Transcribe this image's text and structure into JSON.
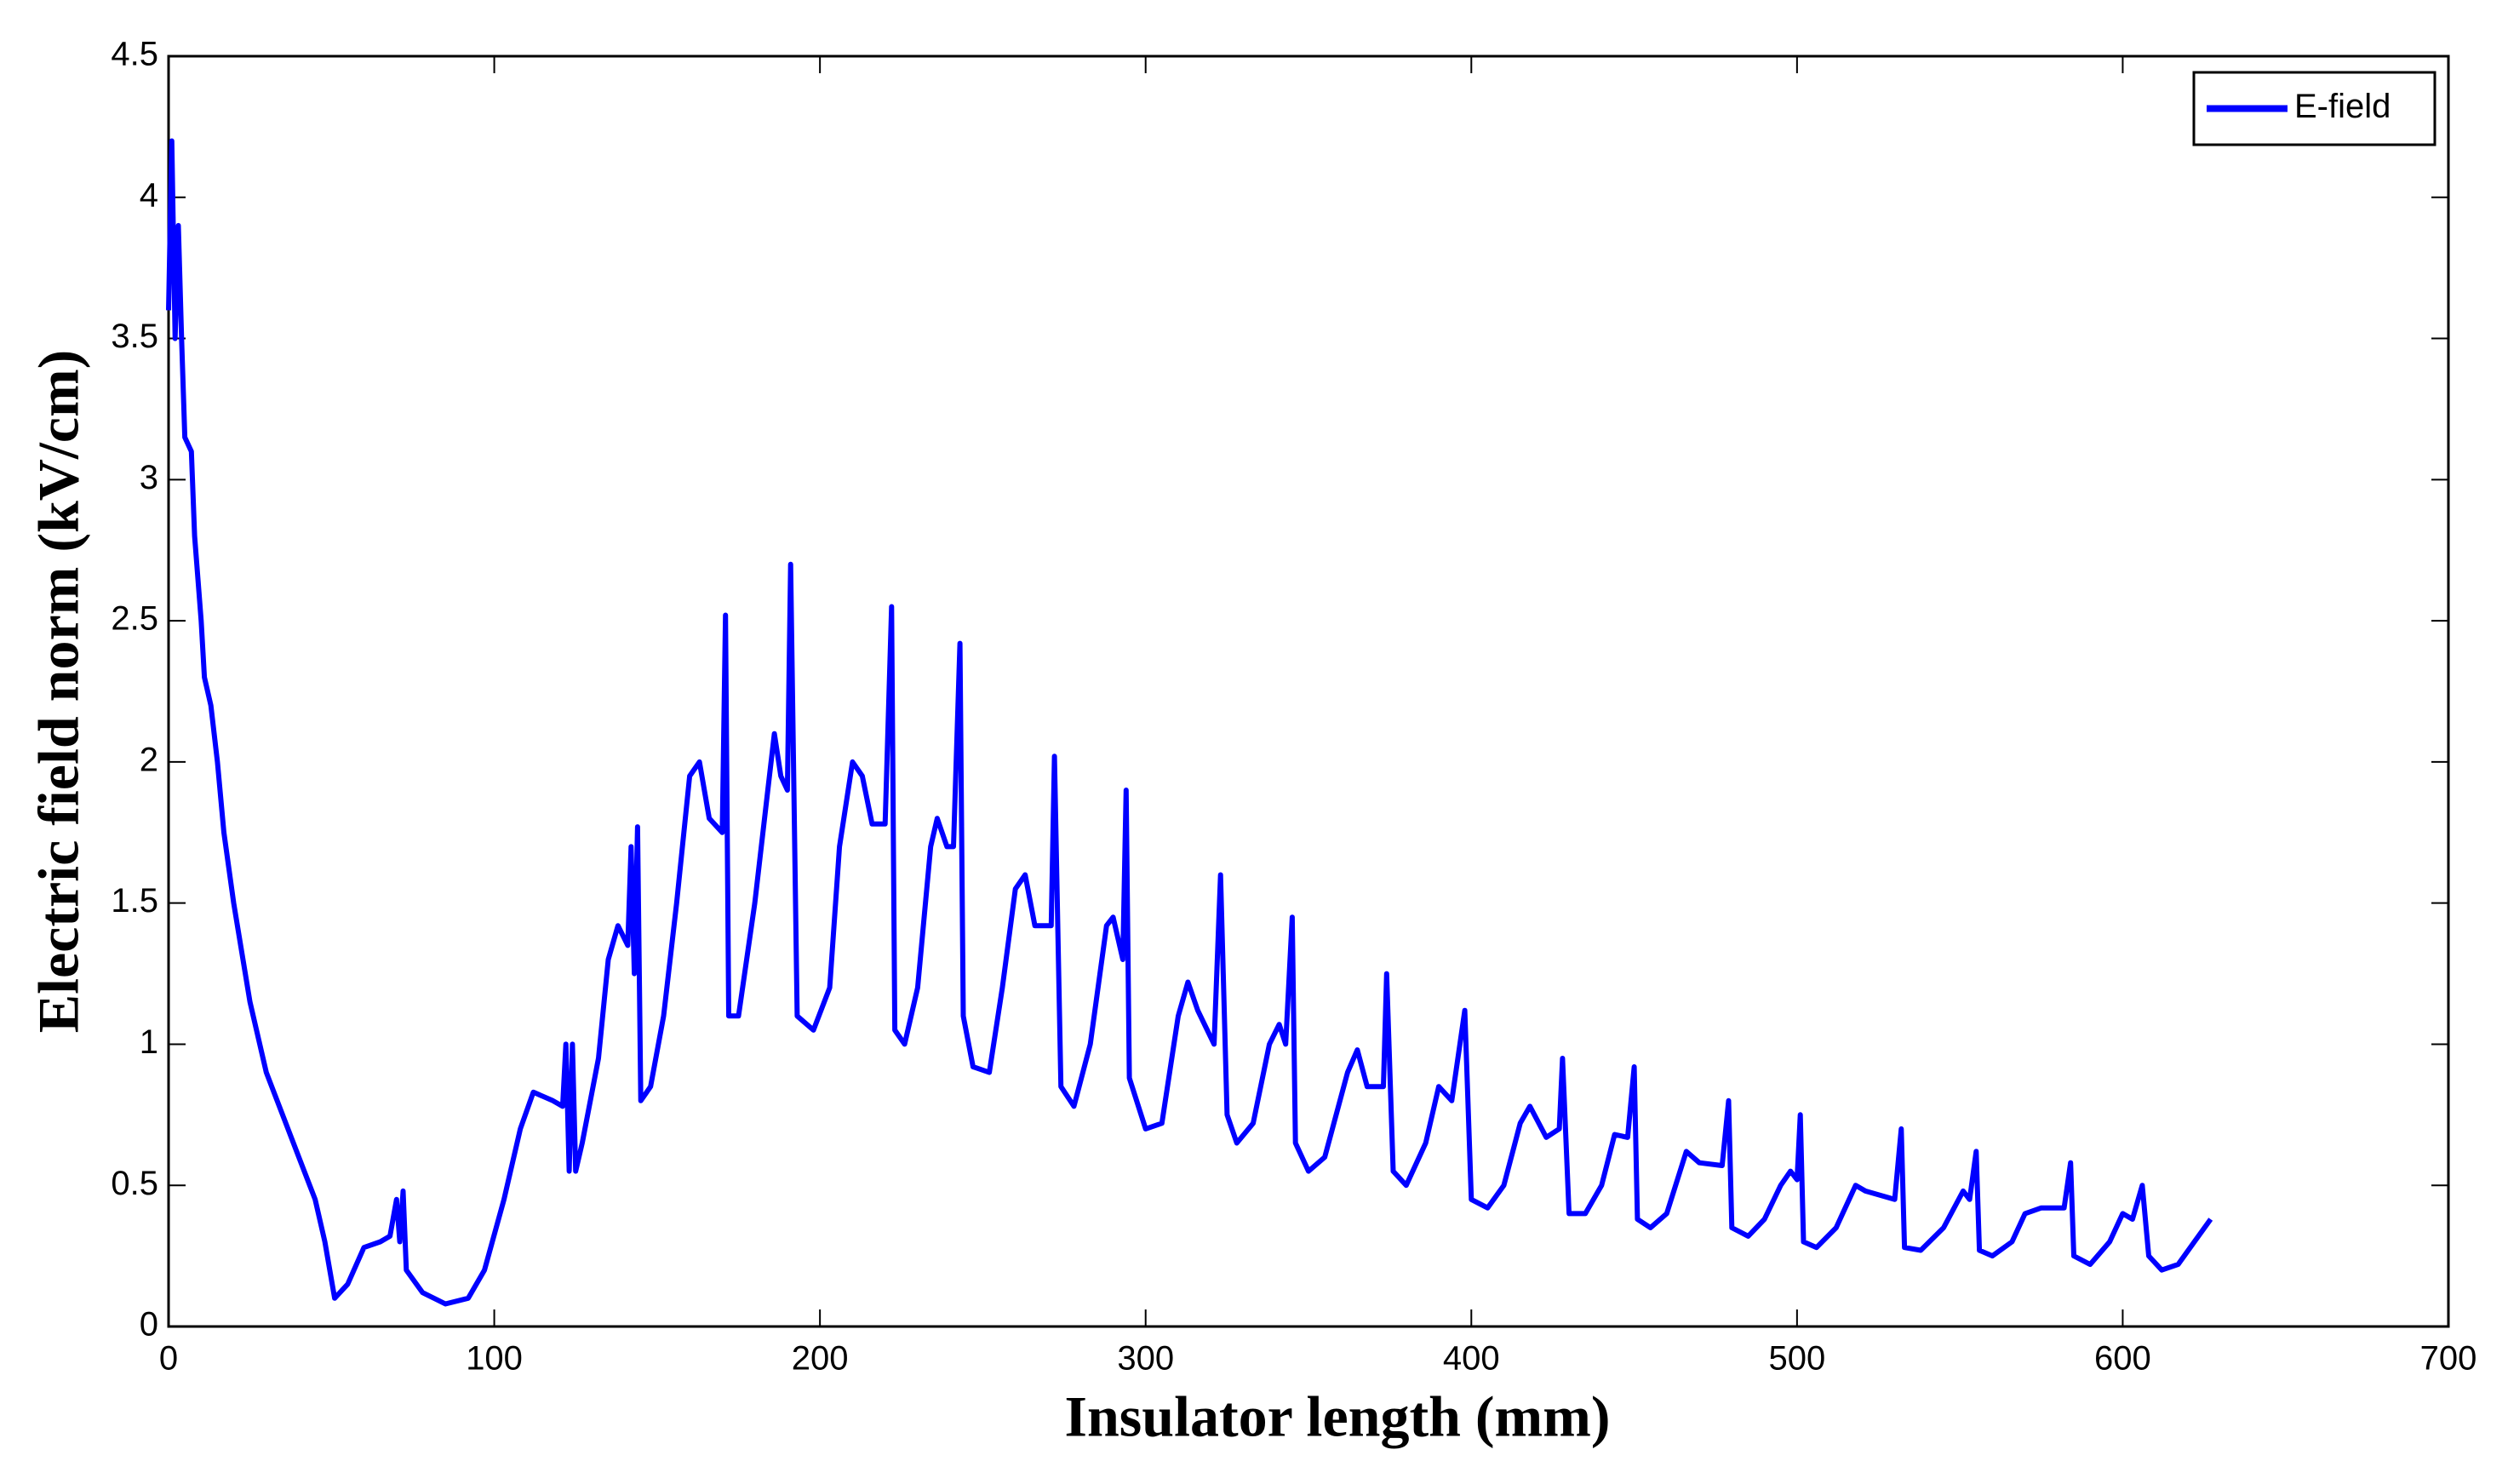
{
  "chart_data": {
    "type": "line",
    "xlabel": "Insulator length (mm)",
    "ylabel": "Electric field norm (kV/cm)",
    "xlim": [
      0,
      700
    ],
    "xticks": [
      0,
      100,
      200,
      300,
      400,
      500,
      600,
      700
    ],
    "ylim": [
      0,
      4.5
    ],
    "yticks": [
      0,
      0.5,
      1,
      1.5,
      2,
      2.5,
      3,
      3.5,
      4,
      4.5
    ],
    "legend": "upper right",
    "x": [
      0,
      1,
      2,
      3,
      4,
      5,
      7,
      8,
      10,
      11,
      13,
      15,
      17,
      20,
      25,
      30,
      35,
      40,
      45,
      48,
      51,
      55,
      60,
      65,
      68,
      70,
      71,
      72,
      73,
      78,
      85,
      92,
      97,
      103,
      108,
      112,
      118,
      121,
      122,
      123,
      124,
      125,
      127,
      132,
      135,
      138,
      141,
      142,
      143,
      144,
      145,
      148,
      152,
      156,
      160,
      163,
      166,
      170,
      171,
      172,
      175,
      180,
      184,
      186,
      188,
      190,
      191,
      193,
      198,
      203,
      206,
      210,
      213,
      216,
      220,
      222,
      223,
      226,
      230,
      234,
      236,
      239,
      241,
      243,
      244,
      247,
      252,
      256,
      260,
      263,
      266,
      271,
      272,
      274,
      278,
      283,
      288,
      290,
      293,
      294,
      295,
      300,
      305,
      310,
      313,
      316,
      321,
      323,
      325,
      328,
      333,
      338,
      341,
      343,
      345,
      346,
      350,
      355,
      362,
      365,
      368,
      373,
      374,
      376,
      380,
      386,
      390,
      394,
      398,
      400,
      405,
      410,
      415,
      418,
      423,
      427,
      428,
      430,
      435,
      440,
      444,
      448,
      450,
      451,
      455,
      460,
      466,
      470,
      477,
      479,
      480,
      485,
      490,
      495,
      498,
      500,
      501,
      502,
      506,
      512,
      518,
      521,
      530,
      532,
      533,
      538,
      545,
      551,
      553,
      555,
      556,
      560,
      566,
      570,
      575,
      582,
      584,
      585,
      590,
      596,
      600,
      603,
      606,
      608,
      612,
      617,
      622,
      627
    ],
    "series": [
      {
        "name": "E-field",
        "color": "#0000ff",
        "values": [
          3.6,
          4.2,
          3.5,
          3.9,
          3.5,
          3.15,
          3.1,
          2.8,
          2.5,
          2.3,
          2.2,
          2.0,
          1.75,
          1.5,
          1.15,
          0.9,
          0.75,
          0.6,
          0.45,
          0.3,
          0.1,
          0.15,
          0.28,
          0.3,
          0.32,
          0.45,
          0.3,
          0.48,
          0.2,
          0.12,
          0.08,
          0.1,
          0.2,
          0.45,
          0.7,
          0.83,
          0.8,
          0.78,
          1.0,
          0.55,
          1.0,
          0.55,
          0.65,
          0.95,
          1.3,
          1.42,
          1.35,
          1.7,
          1.25,
          1.77,
          0.8,
          0.85,
          1.1,
          1.5,
          1.95,
          2.0,
          1.8,
          1.75,
          2.52,
          1.1,
          1.1,
          1.5,
          1.9,
          2.1,
          1.95,
          1.9,
          2.7,
          1.1,
          1.05,
          1.2,
          1.7,
          2.0,
          1.95,
          1.78,
          1.78,
          2.55,
          1.05,
          1.0,
          1.2,
          1.7,
          1.8,
          1.7,
          1.7,
          2.42,
          1.1,
          0.92,
          0.9,
          1.2,
          1.55,
          1.6,
          1.42,
          1.42,
          2.02,
          0.85,
          0.78,
          1.0,
          1.42,
          1.45,
          1.3,
          1.9,
          0.88,
          0.7,
          0.72,
          1.1,
          1.22,
          1.12,
          1.0,
          1.6,
          0.75,
          0.65,
          0.72,
          1.0,
          1.07,
          1.0,
          1.45,
          0.65,
          0.55,
          0.6,
          0.9,
          0.98,
          0.85,
          0.85,
          1.25,
          0.55,
          0.5,
          0.65,
          0.85,
          0.8,
          1.12,
          0.45,
          0.42,
          0.5,
          0.72,
          0.78,
          0.67,
          0.7,
          0.95,
          0.4,
          0.4,
          0.5,
          0.68,
          0.67,
          0.92,
          0.38,
          0.35,
          0.4,
          0.62,
          0.58,
          0.57,
          0.8,
          0.35,
          0.32,
          0.38,
          0.5,
          0.55,
          0.52,
          0.75,
          0.3,
          0.28,
          0.35,
          0.5,
          0.48,
          0.45,
          0.7,
          0.28,
          0.27,
          0.35,
          0.48,
          0.45,
          0.62,
          0.27,
          0.25,
          0.3,
          0.4,
          0.42,
          0.42,
          0.58,
          0.25,
          0.22,
          0.3,
          0.4,
          0.38,
          0.5,
          0.25,
          0.2,
          0.22,
          0.3,
          0.38
        ]
      }
    ]
  }
}
